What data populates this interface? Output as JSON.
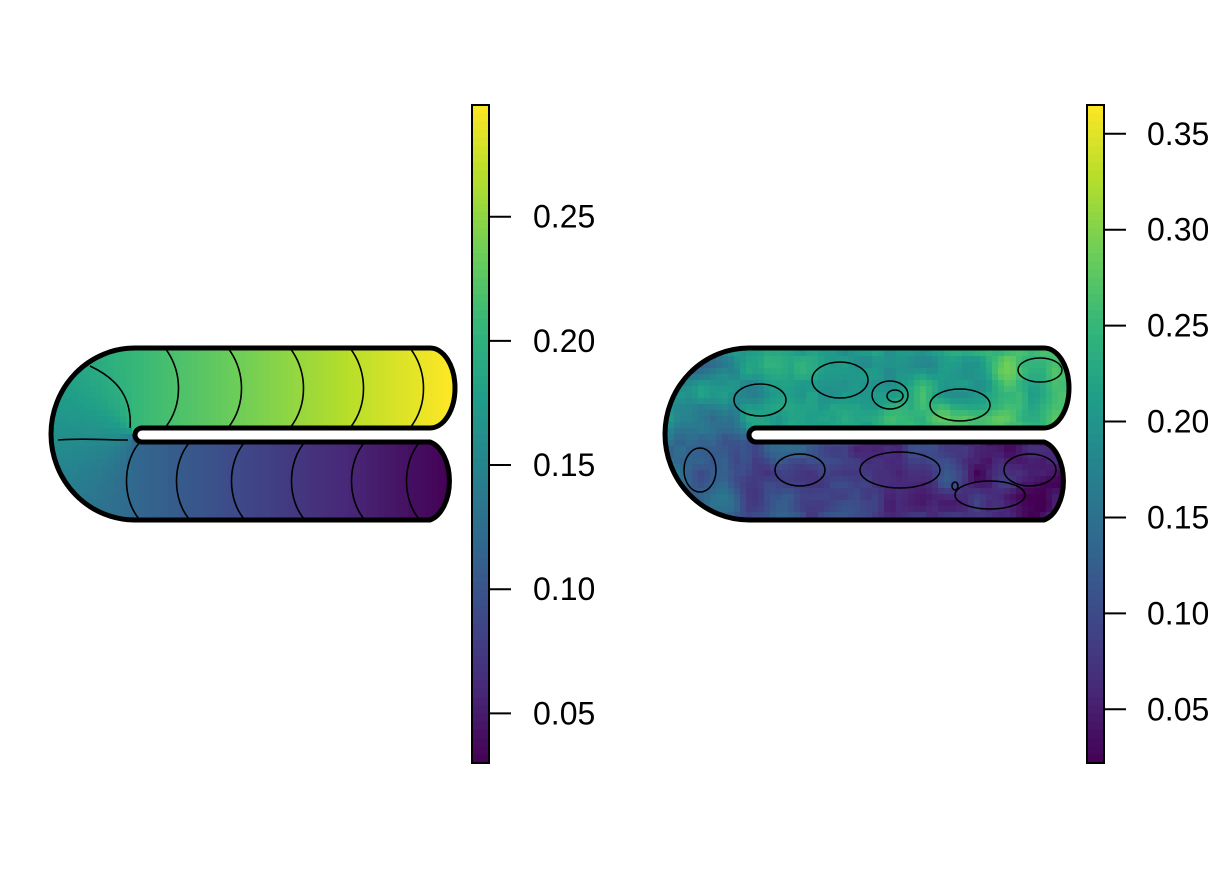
{
  "chart_data": [
    {
      "type": "heatmap",
      "title": "",
      "xlabel": "",
      "ylabel": "",
      "legend": "colorbar right",
      "colormap": "viridis",
      "contours": true,
      "colorbar": {
        "range": [
          0.03,
          0.295
        ],
        "ticks": [
          0.05,
          0.1,
          0.15,
          0.2,
          0.25
        ],
        "tick_labels": [
          "0.05",
          "0.10",
          "0.15",
          "0.20",
          "0.25"
        ]
      },
      "field": {
        "outer_arm_range": [
          0.175,
          0.295
        ],
        "inner_arm_range": [
          0.03,
          0.165
        ],
        "gradient": "smooth, increasing along top arm to the right, decreasing along bottom arm to the right"
      }
    },
    {
      "type": "heatmap",
      "title": "",
      "xlabel": "",
      "ylabel": "",
      "legend": "colorbar right",
      "colormap": "viridis",
      "contours": true,
      "colorbar": {
        "range": [
          0.022,
          0.365
        ],
        "ticks": [
          0.05,
          0.1,
          0.15,
          0.2,
          0.25,
          0.3,
          0.35
        ],
        "tick_labels": [
          "0.05",
          "0.10",
          "0.15",
          "0.20",
          "0.25",
          "0.30",
          "0.35"
        ]
      },
      "field": {
        "outer_arm_range": [
          0.12,
          0.34
        ],
        "inner_arm_range": [
          0.03,
          0.14
        ],
        "gradient": "noisy estimate of the same field"
      }
    }
  ],
  "colors": {
    "viridis": [
      "#440154",
      "#482878",
      "#3e4989",
      "#31688e",
      "#26828e",
      "#1f9e89",
      "#35b779",
      "#6ece58",
      "#b5de2b",
      "#fde725"
    ]
  }
}
